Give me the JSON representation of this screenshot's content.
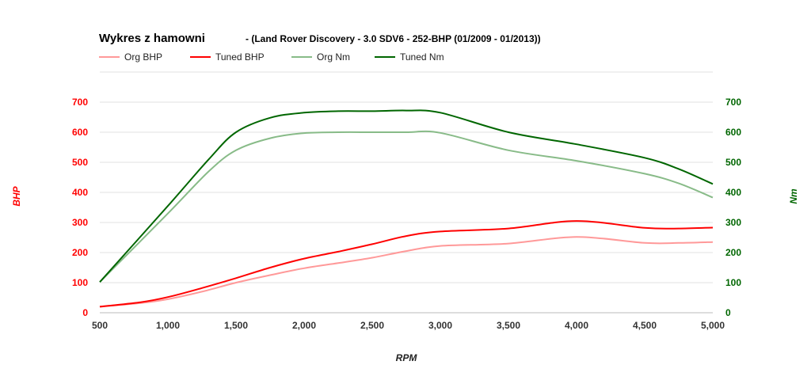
{
  "chart_data": {
    "type": "line",
    "title": "Wykres z hamowni",
    "subtitle": "- (Land Rover Discovery - 3.0 SDV6 - 252-BHP (01/2009 - 01/2013))",
    "xlabel": "RPM",
    "ylabel_left": "BHP",
    "ylabel_right": "Nm",
    "xlim": [
      500,
      5000
    ],
    "ylim_left": [
      0,
      700
    ],
    "ylim_right": [
      0,
      700
    ],
    "x_ticks": [
      "500",
      "1,000",
      "1,500",
      "2,000",
      "2,500",
      "3,000",
      "3,500",
      "4,000",
      "4,500",
      "5,000"
    ],
    "y_ticks_left": [
      "0",
      "100",
      "200",
      "300",
      "400",
      "500",
      "600",
      "700"
    ],
    "y_ticks_right": [
      "0",
      "100",
      "200",
      "300",
      "400",
      "500",
      "600",
      "700"
    ],
    "grid": true,
    "legend_position": "top-left",
    "colors": {
      "left_axis": "#ff0000",
      "right_axis": "#006600",
      "grid": "#e0e0e0"
    },
    "series": [
      {
        "name": "Org BHP",
        "axis": "left",
        "color": "#ff9999",
        "x": [
          500,
          800,
          1000,
          1250,
          1500,
          1750,
          2000,
          2250,
          2500,
          2750,
          3000,
          3500,
          4000,
          4500,
          4750,
          5000
        ],
        "y": [
          20,
          32,
          45,
          70,
          100,
          125,
          148,
          165,
          183,
          205,
          222,
          230,
          252,
          232,
          232,
          235
        ]
      },
      {
        "name": "Tuned BHP",
        "axis": "left",
        "color": "#ff0000",
        "x": [
          500,
          800,
          1000,
          1250,
          1500,
          1750,
          2000,
          2250,
          2500,
          2750,
          3000,
          3500,
          4000,
          4500,
          4750,
          5000
        ],
        "y": [
          20,
          35,
          52,
          82,
          115,
          150,
          180,
          203,
          228,
          255,
          270,
          280,
          305,
          282,
          280,
          283
        ]
      },
      {
        "name": "Org Nm",
        "axis": "right",
        "color": "#88bb88",
        "x": [
          500,
          1000,
          1300,
          1500,
          1750,
          2000,
          2250,
          2500,
          2750,
          3000,
          3500,
          4000,
          4500,
          4750,
          5000
        ],
        "y": [
          102,
          330,
          470,
          540,
          580,
          597,
          600,
          600,
          600,
          598,
          540,
          505,
          462,
          430,
          383
        ]
      },
      {
        "name": "Tuned Nm",
        "axis": "right",
        "color": "#006600",
        "x": [
          500,
          1000,
          1300,
          1500,
          1750,
          2000,
          2250,
          2500,
          2750,
          3000,
          3500,
          4000,
          4500,
          4750,
          5000
        ],
        "y": [
          102,
          355,
          510,
          600,
          648,
          665,
          670,
          670,
          672,
          665,
          600,
          560,
          515,
          478,
          428
        ]
      }
    ]
  }
}
